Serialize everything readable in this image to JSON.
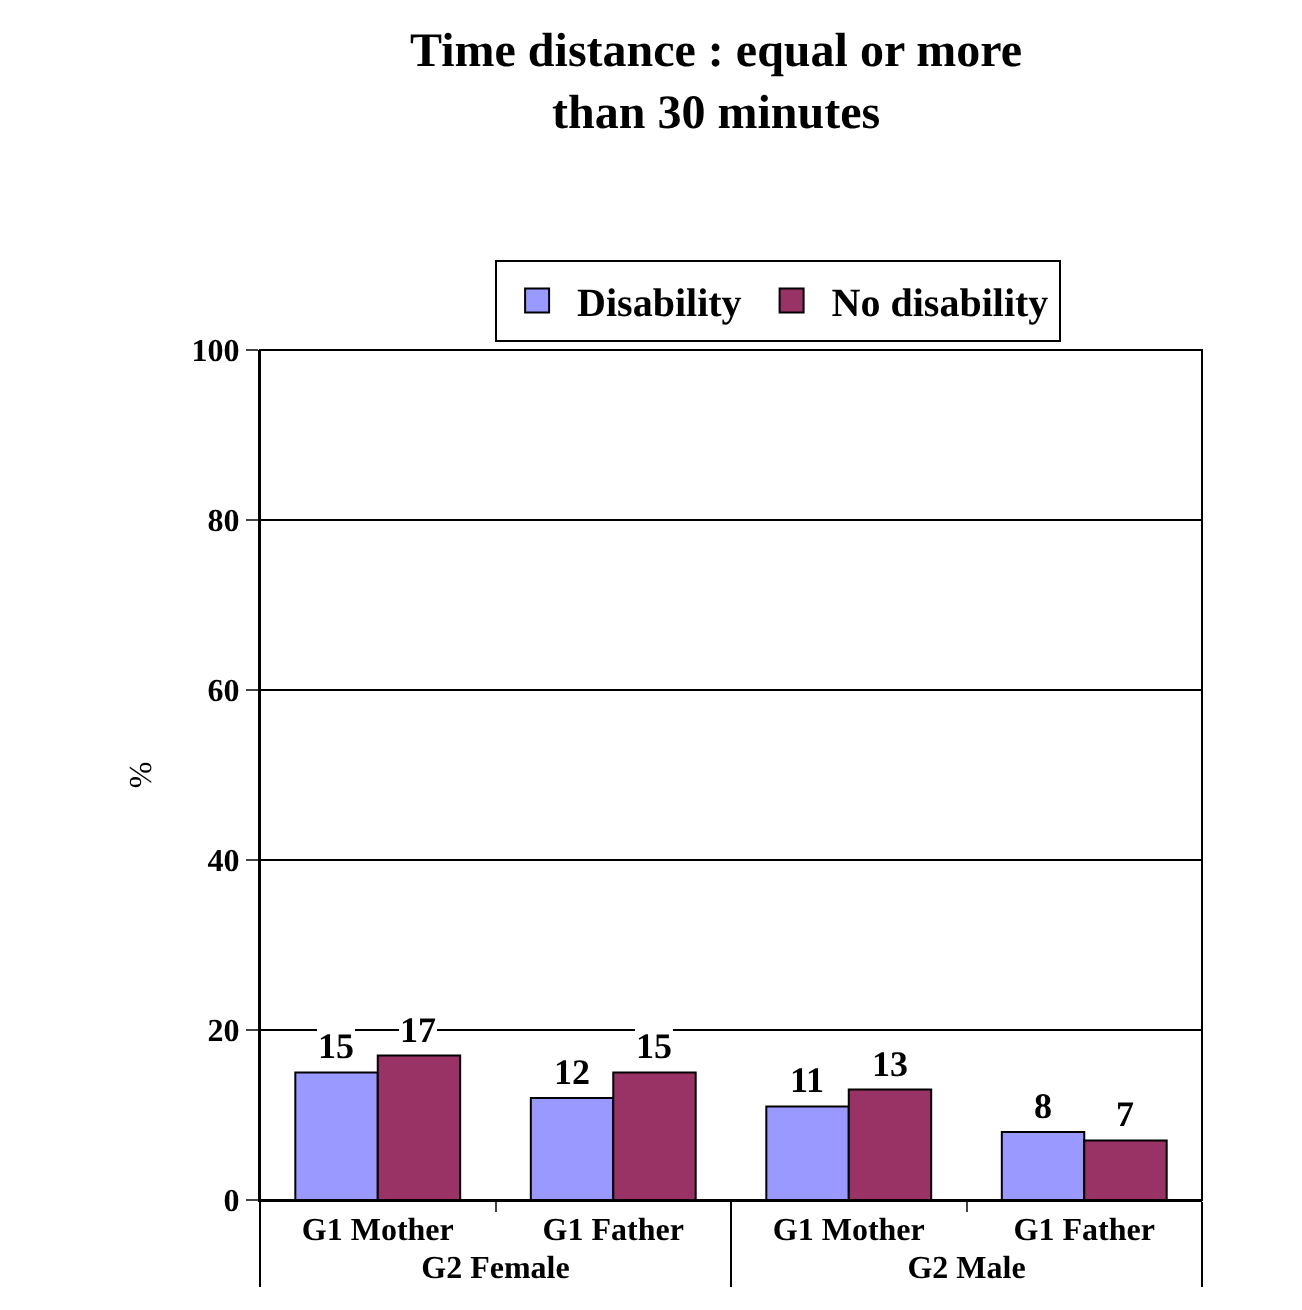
{
  "chart_data": {
    "type": "bar",
    "title": "Time distance : equal or more than 30 minutes",
    "ylabel": "%",
    "categories": [
      "G1 Mother",
      "G1 Father",
      "G1 Mother",
      "G1 Father"
    ],
    "annotations": [
      "G2 Female",
      "G2 Male"
    ],
    "series": [
      {
        "name": "Disability",
        "color": "#9999ff",
        "values": [
          15,
          12,
          11,
          8
        ]
      },
      {
        "name": "No disability",
        "color": "#993366",
        "values": [
          17,
          15,
          13,
          7
        ]
      }
    ],
    "ylim": [
      0,
      100
    ],
    "yticks": [
      0,
      20,
      40,
      60,
      80,
      100
    ],
    "grid": "y",
    "legend": "top",
    "data_labels": true
  }
}
